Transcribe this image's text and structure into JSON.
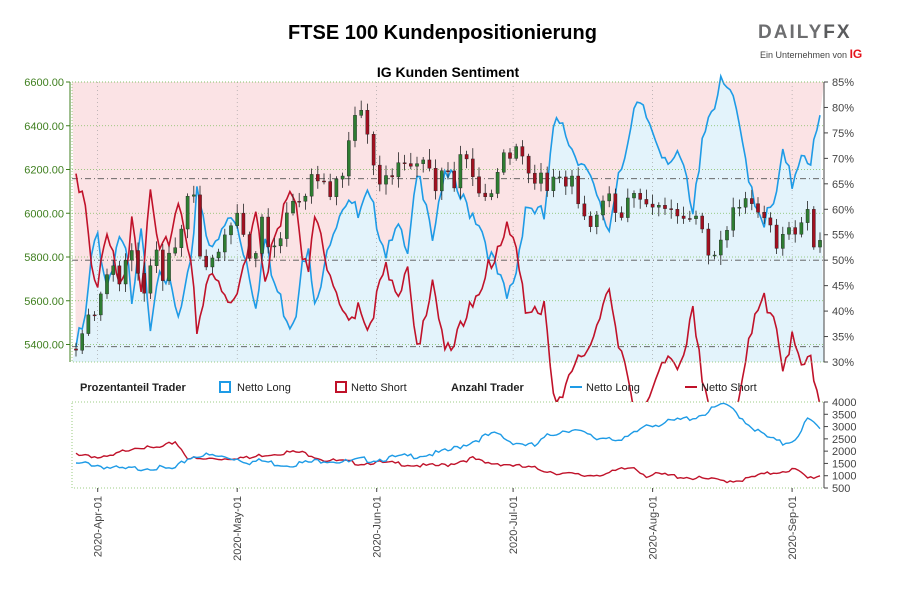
{
  "header": {
    "title": "FTSE 100 Kundenpositionierung",
    "subtitle": "IG Kunden Sentiment"
  },
  "logo": {
    "main_a": "DAILY",
    "main_b": "FX",
    "sub": "Ein Unternehmen von",
    "sub_brand": "IG"
  },
  "colors": {
    "long": "#1e9be6",
    "short": "#c0122a",
    "long_fill": "#e3f3fb",
    "short_fill": "#fbe3e5",
    "up": "#2e7d32",
    "down": "#a01020",
    "left_axis": "#3f7f1f"
  },
  "legend": {
    "pct_label": "Prozentanteil Trader",
    "count_label": "Anzahl Trader",
    "long": "Netto Long",
    "short": "Netto Short"
  },
  "chart_data": {
    "type": "candlestick",
    "price_axis": {
      "min": 5320,
      "max": 6600,
      "ticks": [
        "5400.00",
        "5600.00",
        "5800.00",
        "6000.00",
        "6200.00",
        "6400.00",
        "6600.00"
      ]
    },
    "pct_axis": {
      "min": 30,
      "max": 85,
      "ticks": [
        "30%",
        "35%",
        "40%",
        "45%",
        "50%",
        "55%",
        "60%",
        "65%",
        "70%",
        "75%",
        "80%",
        "85%"
      ]
    },
    "count_axis": {
      "min": 500,
      "max": 4000,
      "ticks": [
        "500",
        "1000",
        "1500",
        "2000",
        "2500",
        "3000",
        "3500",
        "4000"
      ]
    },
    "x_ticks": [
      "2020-Apr-01",
      "2020-May-01",
      "2020-Jun-01",
      "2020-Jul-01",
      "2020-Aug-01",
      "2020-Sep-01"
    ],
    "ref_lines_pct": [
      33,
      50,
      66
    ],
    "pct_long_keys": [
      [
        0,
        33
      ],
      [
        3,
        38
      ],
      [
        5,
        50
      ],
      [
        7,
        55
      ],
      [
        10,
        45
      ],
      [
        14,
        55
      ],
      [
        17,
        48
      ],
      [
        18,
        40
      ],
      [
        21,
        55
      ],
      [
        24,
        38
      ],
      [
        27,
        50
      ],
      [
        30,
        45
      ],
      [
        33,
        38
      ],
      [
        37,
        48
      ],
      [
        39,
        65
      ],
      [
        42,
        56
      ],
      [
        45,
        52
      ],
      [
        49,
        58
      ],
      [
        52,
        57
      ],
      [
        55,
        50
      ],
      [
        58,
        42
      ],
      [
        61,
        54
      ],
      [
        63,
        47
      ],
      [
        66,
        42
      ],
      [
        69,
        38
      ],
      [
        71,
        40
      ],
      [
        73,
        52
      ],
      [
        75,
        51
      ],
      [
        77,
        40
      ],
      [
        80,
        47
      ],
      [
        82,
        55
      ],
      [
        85,
        60
      ],
      [
        88,
        63
      ],
      [
        91,
        58
      ],
      [
        94,
        62
      ],
      [
        97,
        58
      ],
      [
        100,
        52
      ],
      [
        103,
        58
      ],
      [
        107,
        50
      ],
      [
        110,
        66
      ],
      [
        113,
        63
      ],
      [
        115,
        55
      ],
      [
        118,
        65
      ],
      [
        121,
        66
      ],
      [
        124,
        62
      ],
      [
        127,
        60
      ],
      [
        130,
        58
      ],
      [
        133,
        52
      ],
      [
        136,
        47
      ],
      [
        139,
        42
      ],
      [
        142,
        48
      ],
      [
        145,
        61
      ],
      [
        148,
        60
      ],
      [
        151,
        58
      ],
      [
        154,
        75
      ],
      [
        157,
        78
      ],
      [
        160,
        72
      ],
      [
        163,
        70
      ],
      [
        166,
        65
      ],
      [
        169,
        60
      ],
      [
        172,
        56
      ],
      [
        175,
        68
      ],
      [
        178,
        73
      ],
      [
        181,
        80
      ],
      [
        184,
        78
      ],
      [
        187,
        74
      ],
      [
        190,
        71
      ],
      [
        193,
        70
      ],
      [
        196,
        68
      ],
      [
        199,
        58
      ],
      [
        202,
        75
      ],
      [
        205,
        80
      ],
      [
        208,
        84
      ],
      [
        211,
        83
      ],
      [
        213,
        78
      ],
      [
        216,
        70
      ],
      [
        219,
        62
      ],
      [
        222,
        58
      ],
      [
        225,
        60
      ],
      [
        228,
        70
      ],
      [
        231,
        65
      ],
      [
        234,
        72
      ],
      [
        237,
        70
      ],
      [
        240,
        77
      ]
    ],
    "count_long_keys": [
      [
        0,
        1450
      ],
      [
        4,
        1500
      ],
      [
        8,
        1400
      ],
      [
        12,
        1300
      ],
      [
        16,
        1250
      ],
      [
        20,
        1300
      ],
      [
        24,
        1350
      ],
      [
        28,
        1280
      ],
      [
        32,
        1260
      ],
      [
        36,
        1700
      ],
      [
        40,
        1850
      ],
      [
        44,
        1800
      ],
      [
        48,
        1750
      ],
      [
        52,
        1700
      ],
      [
        56,
        1550
      ],
      [
        60,
        1600
      ],
      [
        64,
        1500
      ],
      [
        68,
        1450
      ],
      [
        72,
        1500
      ],
      [
        76,
        1550
      ],
      [
        80,
        1650
      ],
      [
        84,
        1600
      ],
      [
        88,
        1550
      ],
      [
        92,
        1650
      ],
      [
        96,
        1650
      ],
      [
        100,
        1700
      ],
      [
        104,
        1750
      ],
      [
        108,
        1800
      ],
      [
        112,
        1850
      ],
      [
        116,
        1900
      ],
      [
        120,
        2000
      ],
      [
        124,
        2200
      ],
      [
        128,
        2400
      ],
      [
        132,
        2600
      ],
      [
        136,
        2700
      ],
      [
        140,
        2400
      ],
      [
        144,
        2300
      ],
      [
        148,
        2200
      ],
      [
        152,
        2600
      ],
      [
        156,
        2800
      ],
      [
        160,
        2900
      ],
      [
        164,
        2700
      ],
      [
        168,
        2500
      ],
      [
        172,
        2600
      ],
      [
        176,
        2400
      ],
      [
        180,
        2700
      ],
      [
        184,
        3100
      ],
      [
        188,
        3100
      ],
      [
        192,
        3200
      ],
      [
        196,
        3300
      ],
      [
        200,
        3400
      ],
      [
        204,
        3600
      ],
      [
        208,
        3900
      ],
      [
        212,
        3700
      ],
      [
        216,
        3200
      ],
      [
        220,
        2800
      ],
      [
        224,
        2500
      ],
      [
        228,
        2300
      ],
      [
        232,
        2500
      ],
      [
        236,
        3300
      ],
      [
        240,
        2900
      ]
    ],
    "count_short_keys": [
      [
        0,
        1900
      ],
      [
        4,
        1850
      ],
      [
        8,
        1700
      ],
      [
        12,
        1800
      ],
      [
        16,
        2050
      ],
      [
        20,
        2200
      ],
      [
        24,
        2100
      ],
      [
        28,
        2150
      ],
      [
        32,
        2400
      ],
      [
        36,
        1750
      ],
      [
        40,
        1650
      ],
      [
        44,
        1700
      ],
      [
        48,
        1700
      ],
      [
        52,
        1750
      ],
      [
        56,
        1700
      ],
      [
        60,
        1850
      ],
      [
        64,
        1900
      ],
      [
        68,
        1950
      ],
      [
        72,
        1950
      ],
      [
        76,
        1850
      ],
      [
        80,
        1650
      ],
      [
        84,
        1600
      ],
      [
        88,
        1550
      ],
      [
        92,
        1500
      ],
      [
        96,
        1550
      ],
      [
        100,
        1500
      ],
      [
        104,
        1500
      ],
      [
        108,
        1450
      ],
      [
        112,
        1400
      ],
      [
        116,
        1400
      ],
      [
        120,
        1450
      ],
      [
        124,
        1600
      ],
      [
        128,
        1700
      ],
      [
        132,
        1500
      ],
      [
        136,
        1500
      ],
      [
        140,
        1450
      ],
      [
        144,
        1350
      ],
      [
        148,
        1300
      ],
      [
        152,
        1200
      ],
      [
        156,
        1100
      ],
      [
        160,
        1050
      ],
      [
        164,
        1000
      ],
      [
        168,
        1050
      ],
      [
        172,
        1100
      ],
      [
        176,
        1250
      ],
      [
        180,
        1350
      ],
      [
        184,
        1000
      ],
      [
        188,
        1050
      ],
      [
        192,
        1000
      ],
      [
        196,
        950
      ],
      [
        200,
        900
      ],
      [
        204,
        850
      ],
      [
        208,
        800
      ],
      [
        212,
        800
      ],
      [
        216,
        850
      ],
      [
        220,
        1000
      ],
      [
        224,
        1100
      ],
      [
        228,
        1200
      ],
      [
        232,
        1250
      ],
      [
        236,
        900
      ],
      [
        240,
        1000
      ]
    ],
    "price_keys": [
      [
        0,
        5380
      ],
      [
        2,
        5450
      ],
      [
        4,
        5520
      ],
      [
        6,
        5520
      ],
      [
        8,
        5620
      ],
      [
        10,
        5700
      ],
      [
        12,
        5780
      ],
      [
        14,
        5700
      ],
      [
        16,
        5820
      ],
      [
        18,
        5850
      ],
      [
        20,
        5700
      ],
      [
        22,
        5620
      ],
      [
        24,
        5740
      ],
      [
        26,
        5800
      ],
      [
        28,
        5700
      ],
      [
        30,
        5820
      ],
      [
        32,
        5870
      ],
      [
        34,
        5900
      ],
      [
        36,
        6060
      ],
      [
        38,
        6080
      ],
      [
        40,
        5800
      ],
      [
        42,
        5770
      ],
      [
        44,
        5800
      ],
      [
        46,
        5850
      ],
      [
        48,
        5930
      ],
      [
        50,
        5940
      ],
      [
        52,
        6000
      ],
      [
        54,
        5900
      ],
      [
        56,
        5820
      ],
      [
        58,
        5840
      ],
      [
        60,
        6000
      ],
      [
        62,
        5880
      ],
      [
        64,
        5830
      ],
      [
        66,
        5860
      ],
      [
        68,
        6000
      ],
      [
        70,
        6040
      ],
      [
        72,
        6080
      ],
      [
        74,
        6100
      ],
      [
        76,
        6200
      ],
      [
        78,
        6150
      ],
      [
        80,
        6140
      ],
      [
        82,
        6050
      ],
      [
        84,
        6130
      ],
      [
        86,
        6200
      ],
      [
        88,
        6350
      ],
      [
        90,
        6450
      ],
      [
        92,
        6500
      ],
      [
        94,
        6330
      ],
      [
        96,
        6200
      ],
      [
        98,
        6100
      ],
      [
        100,
        6150
      ],
      [
        102,
        6200
      ],
      [
        104,
        6250
      ],
      [
        106,
        6230
      ],
      [
        108,
        6180
      ],
      [
        110,
        6200
      ],
      [
        112,
        6240
      ],
      [
        114,
        6180
      ],
      [
        116,
        6130
      ],
      [
        118,
        6220
      ],
      [
        120,
        6200
      ],
      [
        122,
        6150
      ],
      [
        124,
        6240
      ],
      [
        126,
        6220
      ],
      [
        128,
        6160
      ],
      [
        130,
        6100
      ],
      [
        132,
        6080
      ],
      [
        134,
        6100
      ],
      [
        136,
        6190
      ],
      [
        138,
        6260
      ],
      [
        140,
        6250
      ],
      [
        142,
        6280
      ],
      [
        144,
        6230
      ],
      [
        146,
        6200
      ],
      [
        148,
        6160
      ],
      [
        150,
        6200
      ],
      [
        152,
        6120
      ],
      [
        154,
        6150
      ],
      [
        156,
        6140
      ],
      [
        158,
        6100
      ],
      [
        160,
        6180
      ],
      [
        162,
        6050
      ],
      [
        164,
        6000
      ],
      [
        166,
        5960
      ],
      [
        168,
        5980
      ],
      [
        170,
        6040
      ],
      [
        172,
        6060
      ],
      [
        174,
        6000
      ],
      [
        176,
        5990
      ],
      [
        178,
        6100
      ],
      [
        180,
        6120
      ],
      [
        182,
        6060
      ],
      [
        184,
        6020
      ],
      [
        186,
        6000
      ],
      [
        188,
        6020
      ],
      [
        190,
        6050
      ],
      [
        192,
        6040
      ],
      [
        194,
        6000
      ],
      [
        196,
        5980
      ],
      [
        198,
        5960
      ],
      [
        200,
        5980
      ],
      [
        202,
        5900
      ],
      [
        204,
        5800
      ],
      [
        206,
        5840
      ],
      [
        208,
        5900
      ],
      [
        210,
        5940
      ],
      [
        212,
        6000
      ],
      [
        214,
        6010
      ],
      [
        216,
        6050
      ],
      [
        218,
        6030
      ],
      [
        220,
        6020
      ],
      [
        222,
        6000
      ],
      [
        224,
        5960
      ],
      [
        226,
        5860
      ],
      [
        228,
        5890
      ],
      [
        230,
        5910
      ],
      [
        232,
        5900
      ],
      [
        234,
        5980
      ],
      [
        236,
        6020
      ],
      [
        238,
        5860
      ],
      [
        240,
        5900
      ]
    ]
  }
}
